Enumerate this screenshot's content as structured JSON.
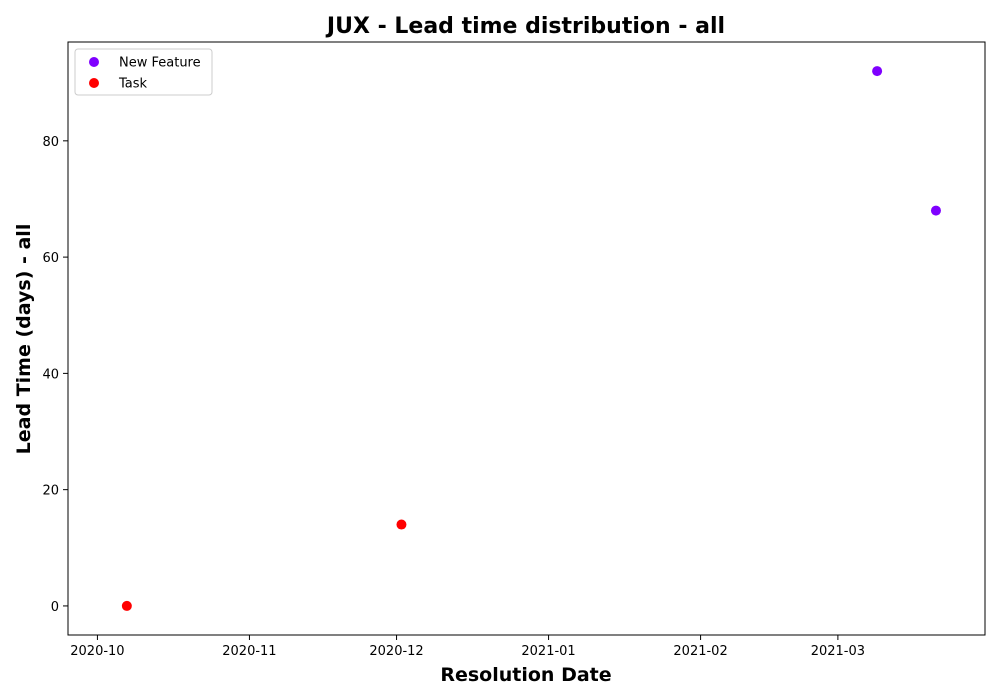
{
  "chart_data": {
    "type": "scatter",
    "title": "JUX - Lead time distribution - all",
    "xlabel": "Resolution Date",
    "ylabel": "Lead Time (days) - all",
    "xlim": [
      "2020-09-25",
      "2021-03-31"
    ],
    "ylim": [
      -5,
      97
    ],
    "x_ticks": [
      "2020-10",
      "2020-11",
      "2020-12",
      "2021-01",
      "2021-02",
      "2021-03"
    ],
    "y_ticks": [
      0,
      20,
      40,
      60,
      80
    ],
    "grid": false,
    "legend": "top-left",
    "series": [
      {
        "name": "New Feature",
        "color": "#7f00ff",
        "points": [
          {
            "x": "2021-03-09",
            "y": 92
          },
          {
            "x": "2021-03-21",
            "y": 68
          }
        ]
      },
      {
        "name": "Task",
        "color": "#ff0000",
        "points": [
          {
            "x": "2020-10-07",
            "y": 0
          },
          {
            "x": "2020-12-02",
            "y": 14
          }
        ]
      }
    ]
  }
}
